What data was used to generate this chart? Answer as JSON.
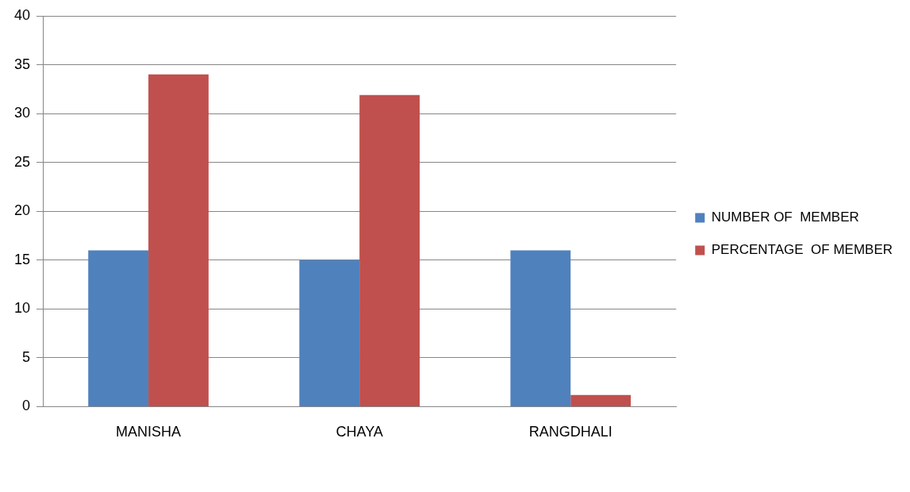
{
  "chart_data": {
    "type": "bar",
    "categories": [
      "MANISHA",
      "CHAYA",
      "RANGDHALI"
    ],
    "series": [
      {
        "name": "NUMBER OF  MEMBER",
        "color": "#4f81bd",
        "values": [
          16,
          15,
          16
        ]
      },
      {
        "name": "PERCENTAGE  OF MEMBER",
        "color": "#c0504d",
        "values": [
          34,
          31.9,
          1.2
        ]
      }
    ],
    "ylim": [
      0,
      40
    ],
    "yticks": [
      0,
      5,
      10,
      15,
      20,
      25,
      30,
      35,
      40
    ],
    "grid": "y",
    "legend": "right"
  }
}
